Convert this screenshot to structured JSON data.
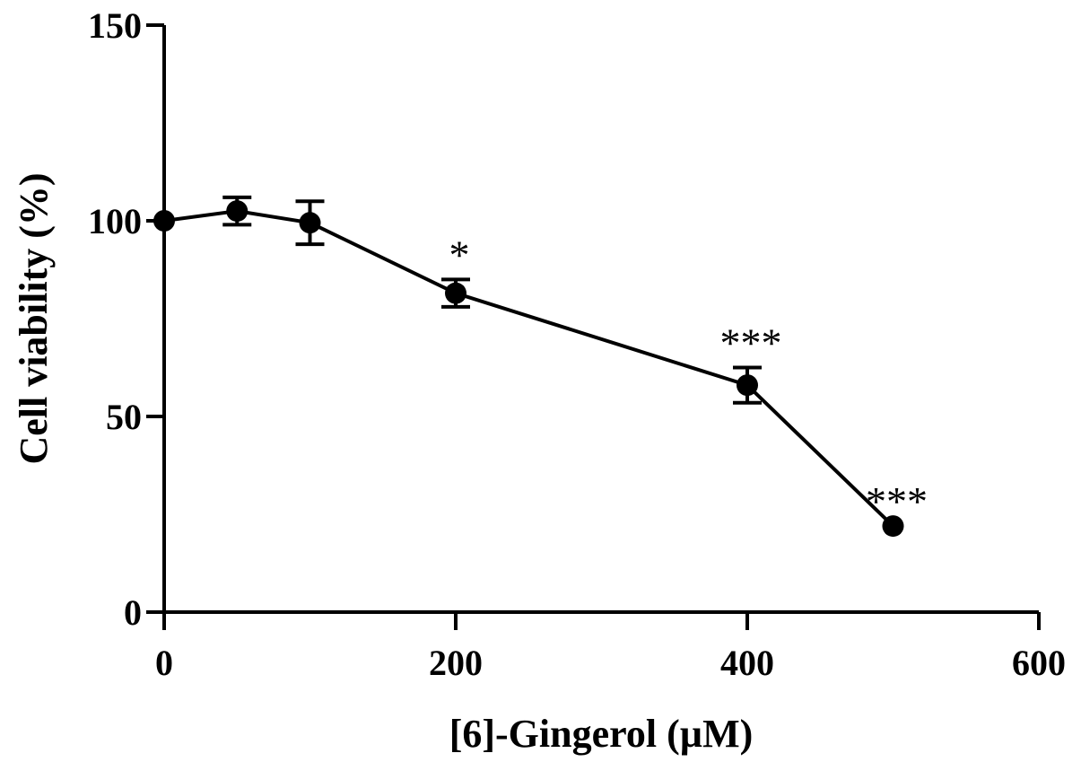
{
  "chart_data": {
    "type": "line",
    "title": "",
    "xlabel": "[6]-Gingerol (µM)",
    "ylabel": "Cell viability (%)",
    "xlim": [
      0,
      600
    ],
    "ylim": [
      0,
      150
    ],
    "x_ticks": [
      "0",
      "200",
      "400",
      "600"
    ],
    "y_ticks": [
      "0",
      "50",
      "100",
      "150"
    ],
    "grid": false,
    "legend": "none",
    "series": [
      {
        "x": [
          0,
          50,
          100,
          200,
          400,
          500
        ],
        "y": [
          100,
          102.5,
          99.5,
          81.5,
          58,
          22
        ],
        "error": [
          0,
          3.5,
          5.5,
          3.5,
          4.5,
          0
        ],
        "annotations": [
          "",
          "",
          "",
          "*",
          "***",
          "***"
        ]
      }
    ]
  }
}
